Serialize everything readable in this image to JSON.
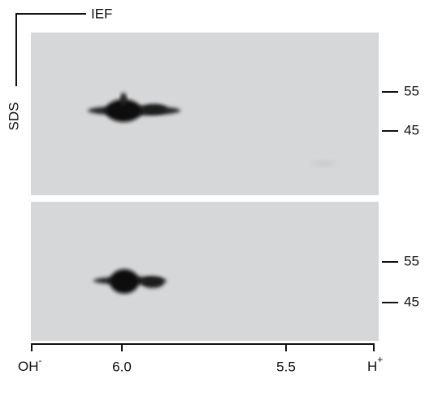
{
  "labels": {
    "horizontal": "IEF",
    "vertical": "SDS"
  },
  "markers": {
    "top": [
      "55",
      "45"
    ],
    "bottom": [
      "55",
      "45"
    ]
  },
  "ph_axis": [
    {
      "base": "OH",
      "sup": "-"
    },
    {
      "base": "6.0"
    },
    {
      "base": "5.5"
    },
    {
      "base": "H",
      "sup": "+"
    }
  ]
}
